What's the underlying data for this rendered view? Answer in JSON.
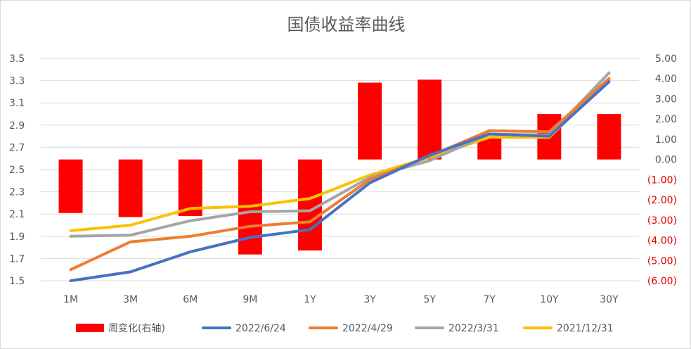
{
  "chart_data": {
    "type": "bar+line",
    "title": "国债收益率曲线",
    "categories": [
      "1M",
      "3M",
      "6M",
      "9M",
      "1Y",
      "3Y",
      "5Y",
      "7Y",
      "10Y",
      "30Y"
    ],
    "left_axis": {
      "ylim": [
        1.5,
        3.5
      ],
      "ticks": [
        "1.5",
        "1.7",
        "1.9",
        "2.1",
        "2.3",
        "2.5",
        "2.7",
        "2.9",
        "3.1",
        "3.3",
        "3.5"
      ]
    },
    "right_axis": {
      "ylim": [
        -6,
        5
      ],
      "ticks": [
        "(6.00)",
        "(5.00)",
        "(4.00)",
        "(3.00)",
        "(2.00)",
        "(1.00)",
        "0.00",
        "1.00",
        "2.00",
        "3.00",
        "4.00",
        "5.00"
      ]
    },
    "bar_series": {
      "name": "周变化(右轴)",
      "color": "#ff0000",
      "values": [
        -2.65,
        -2.85,
        -2.8,
        -4.7,
        -4.5,
        3.8,
        3.95,
        1.1,
        2.25,
        2.25
      ]
    },
    "series": [
      {
        "name": "2022/6/24",
        "color": "#4472c4",
        "values": [
          1.5,
          1.58,
          1.76,
          1.89,
          1.96,
          2.38,
          2.63,
          2.82,
          2.8,
          3.29
        ]
      },
      {
        "name": "2022/4/29",
        "color": "#ed7d31",
        "values": [
          1.6,
          1.85,
          1.9,
          1.99,
          2.03,
          2.41,
          2.62,
          2.85,
          2.84,
          3.32
        ]
      },
      {
        "name": "2022/3/31",
        "color": "#a5a5a5",
        "values": [
          1.9,
          1.91,
          2.04,
          2.12,
          2.13,
          2.43,
          2.58,
          2.82,
          2.81,
          3.37
        ]
      },
      {
        "name": "2021/12/31",
        "color": "#ffc000",
        "values": [
          1.95,
          2.0,
          2.15,
          2.17,
          2.24,
          2.45,
          2.61,
          2.79,
          2.79,
          3.31
        ]
      }
    ]
  }
}
